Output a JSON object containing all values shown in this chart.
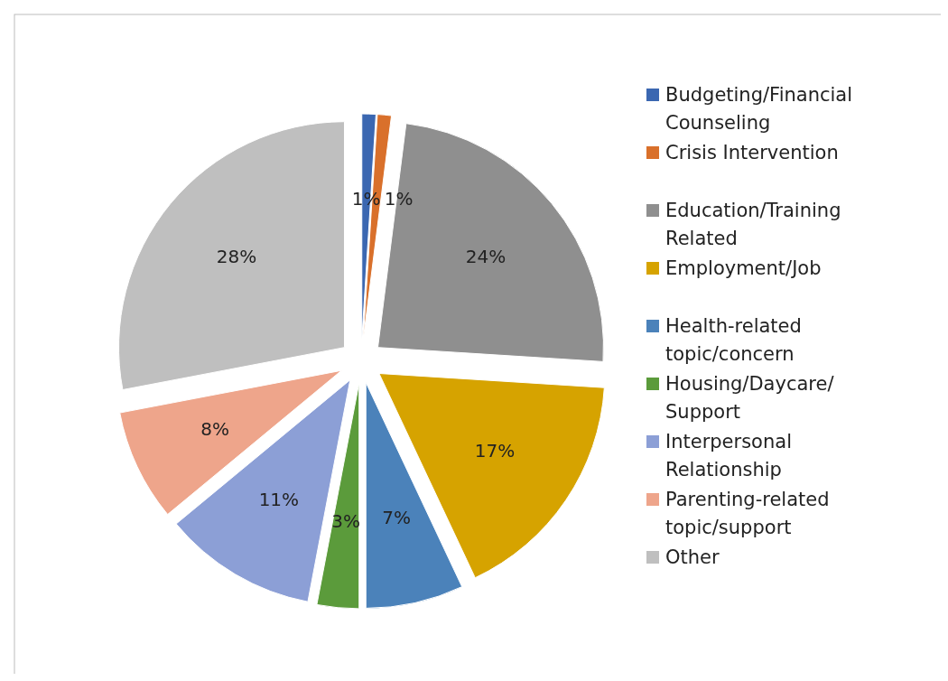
{
  "chart_data": {
    "type": "pie",
    "categories": [
      "Budgeting/Financial Counseling",
      "Crisis Intervention",
      "Education/Training Related",
      "Employment/Job",
      "Health-related topic/concern",
      "Housing/Daycare/ Support",
      "Interpersonal Relationship",
      "Parenting-related topic/support",
      "Other"
    ],
    "values": [
      1,
      1,
      24,
      17,
      7,
      3,
      11,
      8,
      28
    ],
    "value_labels": [
      "1%",
      "1%",
      "24%",
      "17%",
      "7%",
      "3%",
      "11%",
      "8%",
      "28%"
    ],
    "colors": [
      "#3b67b1",
      "#d9702b",
      "#8f8f8f",
      "#d6a300",
      "#4b82ba",
      "#5b9b3b",
      "#8c9fd6",
      "#eea58b",
      "#bfbfbf"
    ],
    "legend": "right"
  }
}
